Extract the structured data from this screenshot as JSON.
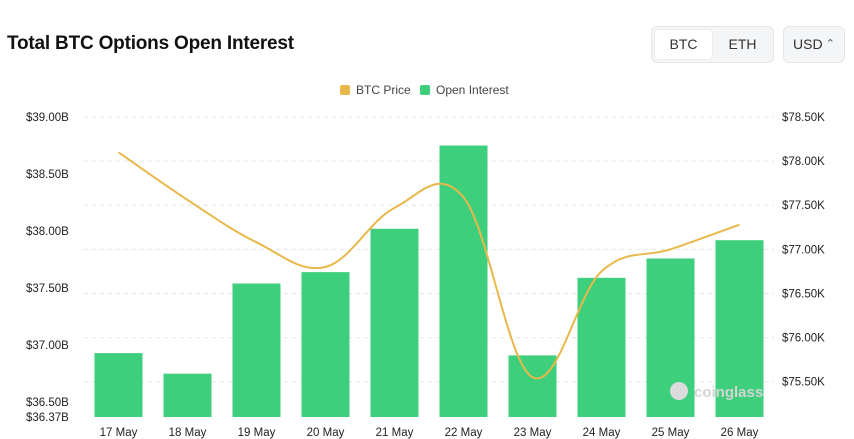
{
  "header": {
    "title": "Total BTC Options Open Interest",
    "asset_options": [
      "BTC",
      "ETH"
    ],
    "asset_selected": "BTC",
    "currency": "USD"
  },
  "watermark": "coinglass",
  "colors": {
    "bar": "#3ecf7c",
    "price_line": "#e8b84a",
    "grid": "#e5e5e5"
  },
  "chart_data": {
    "type": "bar",
    "title": "Total BTC Options Open Interest",
    "categories": [
      "17 May",
      "18 May",
      "19 May",
      "20 May",
      "21 May",
      "22 May",
      "23 May",
      "24 May",
      "25 May",
      "26 May"
    ],
    "series": [
      {
        "name": "Open Interest",
        "type": "bar",
        "axis": "left",
        "values": [
          36.93,
          36.75,
          37.54,
          37.64,
          38.02,
          38.75,
          36.91,
          37.59,
          37.76,
          37.92
        ]
      },
      {
        "name": "BTC Price",
        "type": "line",
        "axis": "right",
        "values": [
          78100,
          77560,
          77080,
          76800,
          77470,
          77590,
          75550,
          76750,
          77000,
          77280
        ]
      }
    ],
    "y_left": {
      "min": 36.37,
      "max": 39.0,
      "ticks": [
        36.37,
        36.5,
        37.0,
        37.5,
        38.0,
        38.5,
        39.0
      ],
      "tick_labels": [
        "$36.37B",
        "$36.50B",
        "$37.00B",
        "$37.50B",
        "$38.00B",
        "$38.50B",
        "$39.00B"
      ]
    },
    "y_right": {
      "min": 75100,
      "max": 78500,
      "ticks": [
        75500,
        76000,
        76500,
        77000,
        77500,
        78000,
        78500
      ],
      "tick_labels": [
        "$75.50K",
        "$76.00K",
        "$76.50K",
        "$77.00K",
        "$77.50K",
        "$78.00K",
        "$78.50K"
      ]
    },
    "legend": [
      "BTC Price",
      "Open Interest"
    ],
    "legend_position": "top-center",
    "grid": true
  }
}
